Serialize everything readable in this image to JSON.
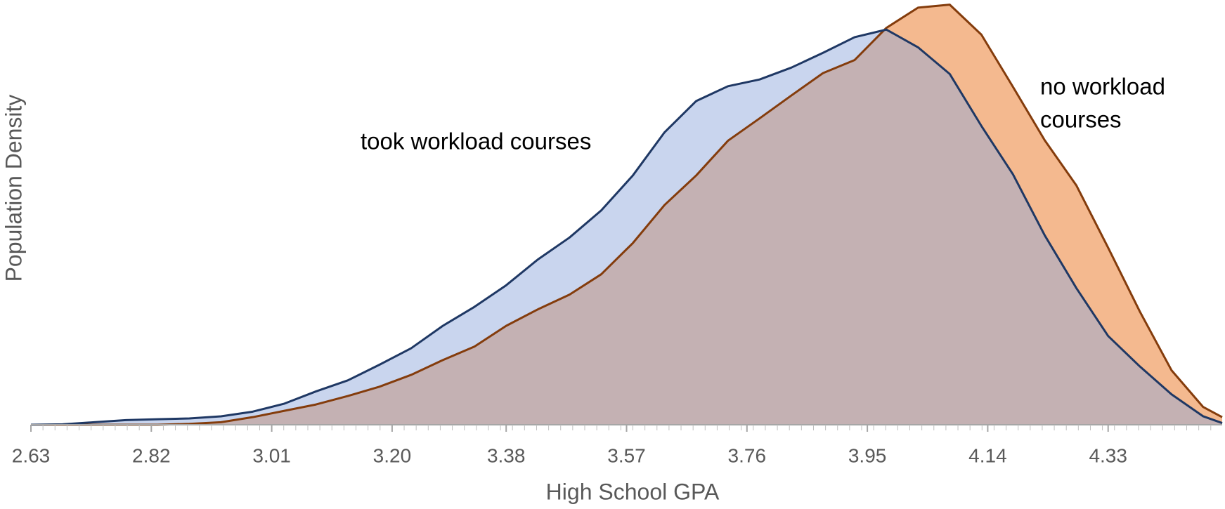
{
  "chart_data": {
    "type": "area",
    "xlabel": "High School GPA",
    "ylabel": "Population Density",
    "x": [
      2.63,
      2.68,
      2.73,
      2.78,
      2.83,
      2.88,
      2.93,
      2.98,
      3.03,
      3.08,
      3.13,
      3.18,
      3.23,
      3.28,
      3.33,
      3.38,
      3.43,
      3.48,
      3.53,
      3.58,
      3.63,
      3.68,
      3.73,
      3.78,
      3.83,
      3.88,
      3.93,
      3.98,
      4.03,
      4.08,
      4.13,
      4.18,
      4.23,
      4.28,
      4.33,
      4.38,
      4.43,
      4.48,
      4.51
    ],
    "series": [
      {
        "name": "took workload courses",
        "color": "#c9d5ee",
        "line_color": "#1f3864",
        "values": [
          0,
          0.1,
          0.6,
          1.1,
          1.3,
          1.5,
          2.0,
          3.1,
          5.0,
          7.9,
          10.5,
          14.2,
          18.1,
          23.4,
          27.9,
          33.0,
          39.1,
          44.3,
          50.7,
          59.0,
          69.2,
          76.6,
          80.1,
          81.7,
          84.5,
          88.0,
          91.7,
          93.5,
          89.3,
          83.0,
          70.7,
          59.2,
          44.8,
          32.3,
          21.0,
          13.8,
          7.2,
          2.0,
          0.4
        ]
      },
      {
        "name": "no workload courses",
        "color": "#f4b98f",
        "line_color": "#843c0c",
        "values": [
          0,
          0,
          0,
          0,
          0,
          0.2,
          0.6,
          1.8,
          3.3,
          4.8,
          6.8,
          9.0,
          11.8,
          15.3,
          18.5,
          23.4,
          27.3,
          30.8,
          35.6,
          43.0,
          52.0,
          59.0,
          67.2,
          72.5,
          77.9,
          83.2,
          86.3,
          93.9,
          98.7,
          99.4,
          92.3,
          79.9,
          67.3,
          56.6,
          41.9,
          26.8,
          12.9,
          4.2,
          1.8
        ]
      }
    ],
    "overlap_color": "#c4b1b3",
    "annotations": [
      "took workload courses",
      "no workload",
      "courses"
    ],
    "xlim": [
      2.63,
      4.51
    ],
    "xticks": [
      2.63,
      2.82,
      3.01,
      {
        "value": 3.2,
        "label": "3.20"
      },
      3.38,
      3.57,
      3.76,
      3.95,
      4.14,
      4.33
    ],
    "ylim": [
      0,
      100
    ]
  }
}
